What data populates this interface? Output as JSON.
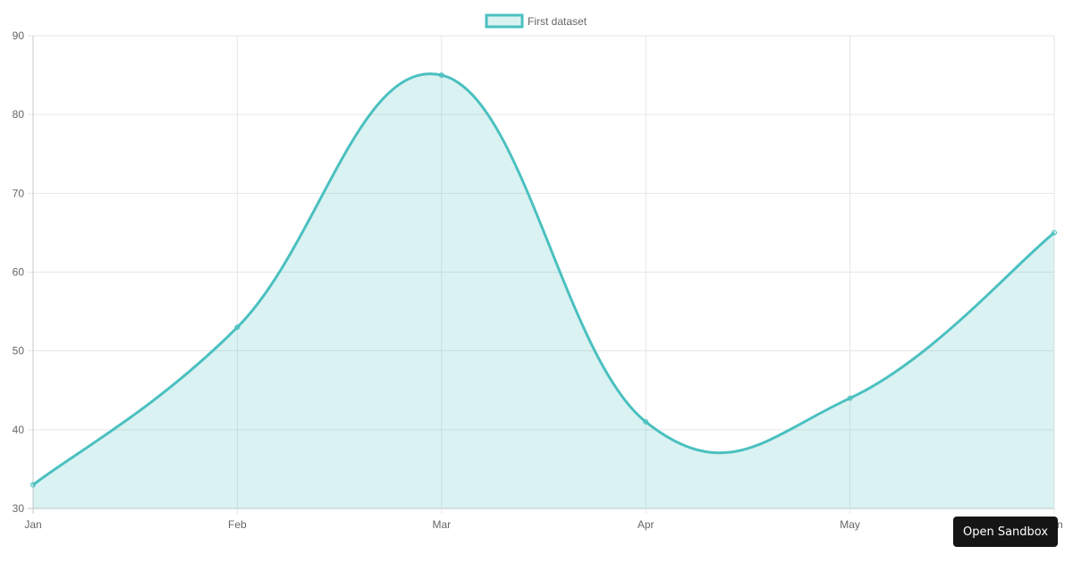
{
  "chart_data": {
    "type": "line",
    "title": "",
    "categories": [
      "Jan",
      "Feb",
      "Mar",
      "Apr",
      "May",
      "Jun"
    ],
    "series": [
      {
        "name": "First dataset",
        "values": [
          33,
          53,
          85,
          41,
          44,
          65
        ],
        "fill": true,
        "border_color": "#4bc0c0",
        "fill_color": "rgba(75,192,192,0.2)"
      }
    ],
    "xlabel": "",
    "ylabel": "",
    "ylim": [
      30,
      90
    ],
    "yticks": [
      30,
      40,
      50,
      60,
      70,
      80,
      90
    ],
    "grid": true,
    "legend_position": "top"
  },
  "legend": {
    "label": "First dataset"
  },
  "button": {
    "label": "Open Sandbox"
  }
}
